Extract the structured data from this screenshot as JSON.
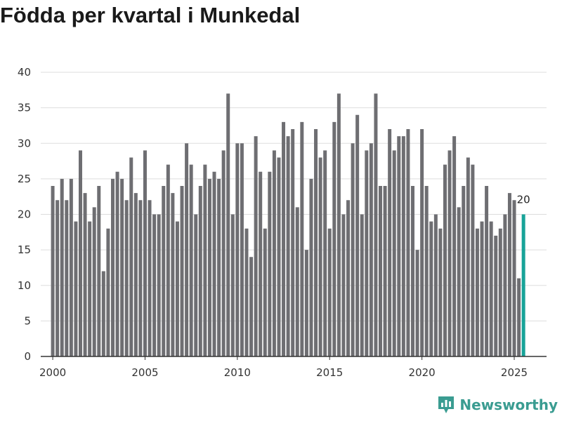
{
  "title": "Födda per kvartal i Munkedal",
  "logo": {
    "text": "Newsworthy"
  },
  "colors": {
    "bar": "#6e6e72",
    "highlight": "#17a398",
    "grid": "#dddddd",
    "axis": "#333333"
  },
  "chart_data": {
    "type": "bar",
    "title": "Födda per kvartal i Munkedal",
    "xlabel": "",
    "ylabel": "",
    "ylim": [
      0,
      40
    ],
    "y_ticks": [
      0,
      5,
      10,
      15,
      20,
      25,
      30,
      35,
      40
    ],
    "x_ticks": [
      2000,
      2005,
      2010,
      2015,
      2020,
      2025
    ],
    "xlim": [
      1999.35,
      2026.75
    ],
    "start_year": 2000,
    "highlight_label": "20",
    "values": [
      24,
      22,
      25,
      22,
      25,
      19,
      29,
      23,
      19,
      21,
      24,
      12,
      18,
      25,
      26,
      25,
      22,
      28,
      23,
      22,
      29,
      22,
      20,
      20,
      24,
      27,
      23,
      19,
      24,
      30,
      27,
      20,
      24,
      27,
      25,
      26,
      25,
      29,
      37,
      20,
      30,
      30,
      18,
      14,
      31,
      26,
      18,
      26,
      29,
      28,
      33,
      31,
      32,
      21,
      33,
      15,
      25,
      32,
      28,
      29,
      18,
      33,
      37,
      20,
      22,
      30,
      34,
      20,
      29,
      30,
      37,
      24,
      24,
      32,
      29,
      31,
      31,
      32,
      24,
      15,
      32,
      24,
      19,
      20,
      18,
      27,
      29,
      31,
      21,
      24,
      28,
      27,
      18,
      19,
      24,
      19,
      17,
      18,
      20,
      23,
      22,
      11,
      20
    ]
  }
}
